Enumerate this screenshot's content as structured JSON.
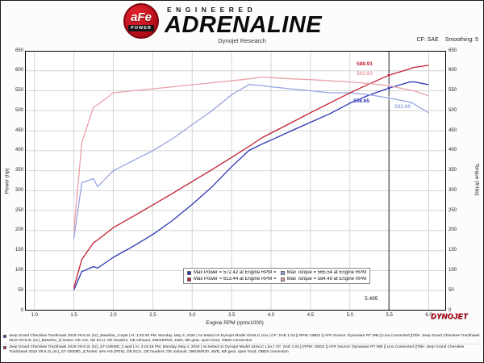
{
  "header": {
    "logo_text": "aFe",
    "logo_sub": "POWER",
    "brand_small": "ENGINEERED",
    "brand_large": "ADRENALINE",
    "subtitle": "Dynojet Research",
    "smoothing_cf": "CF: SAE",
    "smoothing": "Smoothing: 5"
  },
  "chart_data": {
    "type": "line",
    "xlabel": "Engine RPM (rpmx1000)",
    "ylabel_left": "Power (hp)",
    "ylabel_right": "Torque (ft-lbs)",
    "xlim": [
      0.88,
      6.22
    ],
    "ylim": [
      0,
      650
    ],
    "grid": true,
    "x_ticks": [
      1.0,
      1.5,
      2.0,
      2.5,
      3.0,
      3.5,
      4.0,
      4.5,
      5.0,
      5.5,
      6.0
    ],
    "y_ticks": [
      0,
      50,
      100,
      150,
      200,
      250,
      300,
      350,
      400,
      450,
      500,
      550,
      600,
      650
    ],
    "x": [
      1.5,
      1.6,
      1.75,
      1.8,
      2.0,
      2.25,
      2.5,
      2.75,
      3.0,
      3.25,
      3.5,
      3.72,
      3.89,
      4.0,
      4.25,
      4.5,
      4.75,
      5.0,
      5.25,
      5.495,
      5.75,
      5.81,
      5.99,
      6.0
    ],
    "series": [
      {
        "name": "Baseline Power (hp)",
        "color": "#2c35b5",
        "values": [
          51.4,
          97.5,
          110.0,
          106.2,
          133.3,
          160.7,
          190.4,
          225.2,
          265.6,
          309.4,
          359.9,
          400.6,
          417.0,
          426.5,
          449.1,
          471.2,
          492.9,
          518.9,
          539.8,
          556.65,
          571.5,
          572.42,
          565.7,
          565.5
        ]
      },
      {
        "name": "Baseline Torque (ft-lbs)",
        "color": "#97a3e0",
        "values": [
          180,
          320,
          330,
          310,
          350,
          375,
          400,
          430,
          465,
          500,
          540,
          565.54,
          563,
          560,
          555,
          550,
          545,
          545,
          540,
          532.0,
          522,
          517.4,
          496,
          495
        ]
      },
      {
        "name": "57-10009D Power (hp)",
        "color": "#c22033",
        "values": [
          57.1,
          128.0,
          169.9,
          176.5,
          207.5,
          235.6,
          264.2,
          293.2,
          322.7,
          352.7,
          383.2,
          410.8,
          432.9,
          444.0,
          469.3,
          495.2,
          520.0,
          544.6,
          567.7,
          588.91,
          604.3,
          608.4,
          613.44,
          613.3
        ]
      },
      {
        "name": "57-10009D Torque (ft-lbs)",
        "color": "#e9a0a8",
        "values": [
          200,
          420,
          510,
          515,
          545,
          550,
          555,
          560,
          565,
          570,
          575,
          580,
          584.49,
          583,
          580,
          578,
          575,
          572,
          568,
          562.83,
          552,
          550,
          537.9,
          537
        ]
      }
    ],
    "cursor": {
      "rpm": 5.495,
      "rpm_label": "5.495",
      "readouts": [
        {
          "label": "588.91",
          "value": 588.91,
          "color": "#c22033"
        },
        {
          "label": "562.83",
          "value": 562.83,
          "color": "#e9a0a8"
        },
        {
          "label": "556.65",
          "value": 556.65,
          "color": "#2c35b5"
        },
        {
          "label": "532.00",
          "value": 532.0,
          "color": "#97a3e0"
        }
      ]
    },
    "legend": [
      {
        "color": "#2c35b5",
        "label": "Max Power = 572.42 at Engine RPM = 5.81"
      },
      {
        "color": "#97a3e0",
        "label": "Max Torque = 565.54 at Engine RPM = 3.72"
      },
      {
        "color": "#c22033",
        "label": "Max Power = 613.44 at Engine RPM = 5.99"
      },
      {
        "color": "#e9a0a8",
        "label": "Max Torque = 584.49 at Engine RPM = 3.89"
      }
    ],
    "watermark": "DYNOJET"
  },
  "footer": {
    "runs": [
      {
        "color": "#2c35b5",
        "text": "Jeep Grand Cherokee Trackhawk 2019 V8-6.2L (sc)_Baseline_2.wp8 | At: 1:52:46 PM, Monday, May 4, 2020 | As tested on Dynojet Model 424xLC Linx | CF: SAE 1.03 || RPM: OBD2 || AFR Source: Dynoware RT WB || Linx Connected ||Title: Jeep Grand Cherokee Trackhawk 2019 V8-6.2L (sc)_Baseline_2|  Notes: OE AIS, OE ECU, OE headers, OE exhaust, 295/45/R20, 4WD, 6th gear, open hood, OBDII connection"
      },
      {
        "color": "#c22033",
        "text": "Jeep Grand Cherokee Trackhawk 2019 V8-6.2L (sc)_57-10009D_2.wp8 | At: 4:15:19 PM, Monday, May 4, 2020 | As tested on Dynojet Model 424xLC Linx | CF: SAE 1.03 || RPM: OBD2 || AFR Source: Dynoware RT WB || Linx Connected ||Title: Jeep Grand Cherokee Trackhawk 2019 V8-6.2L (sc)_57-10009D_2|  Notes: aFe AIS (PDS), OE ECU, OE headers, OE exhaust, 295/45/R20, 4WD, 6th gear, open hood, OBDII connection"
      }
    ]
  }
}
